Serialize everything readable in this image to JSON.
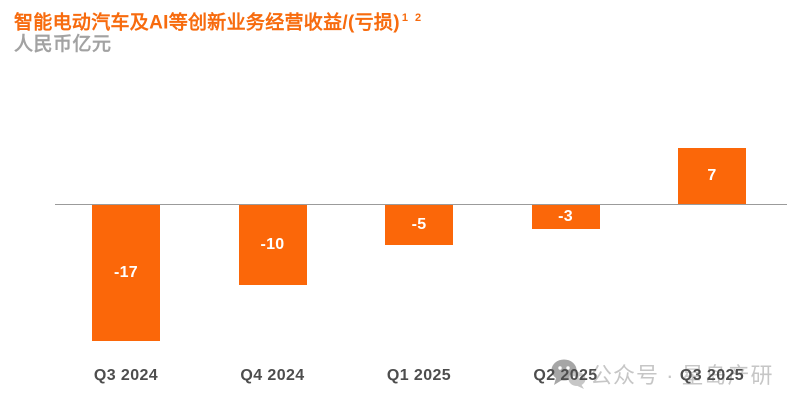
{
  "title": {
    "text": "智能电动汽车及AI等创新业务经营收益/(亏损)",
    "superscript": "1 2",
    "color": "#F76B0E"
  },
  "subtitle": {
    "text": "人民币亿元",
    "color": "#A2A2A2"
  },
  "watermark": {
    "icon": "wechat-icon",
    "text": "公众号 · 星岛产研",
    "text_color": "#C6C6C6",
    "icon_color_primary": "#A6A6A6",
    "icon_color_secondary": "#C6C6C6"
  },
  "chart_data": {
    "type": "bar",
    "categories": [
      "Q3 2024",
      "Q4 2024",
      "Q1 2025",
      "Q2 2025",
      "Q3 2025"
    ],
    "values": [
      -17,
      -10,
      -5,
      -3,
      7
    ],
    "data_labels": [
      "-17",
      "-10",
      "-5",
      "-3",
      "7"
    ],
    "title": "智能电动汽车及AI等创新业务经营收益/(亏损)",
    "ylabel": "人民币亿元",
    "xlabel": "",
    "ylim": [
      -18,
      8
    ],
    "grid": false,
    "legend": "none",
    "bar_color": "#FB6709",
    "bar_label_color": "#FFFFFF",
    "x_label_color": "#4D4D4D",
    "axis_line_color": "#9B9B9B"
  }
}
